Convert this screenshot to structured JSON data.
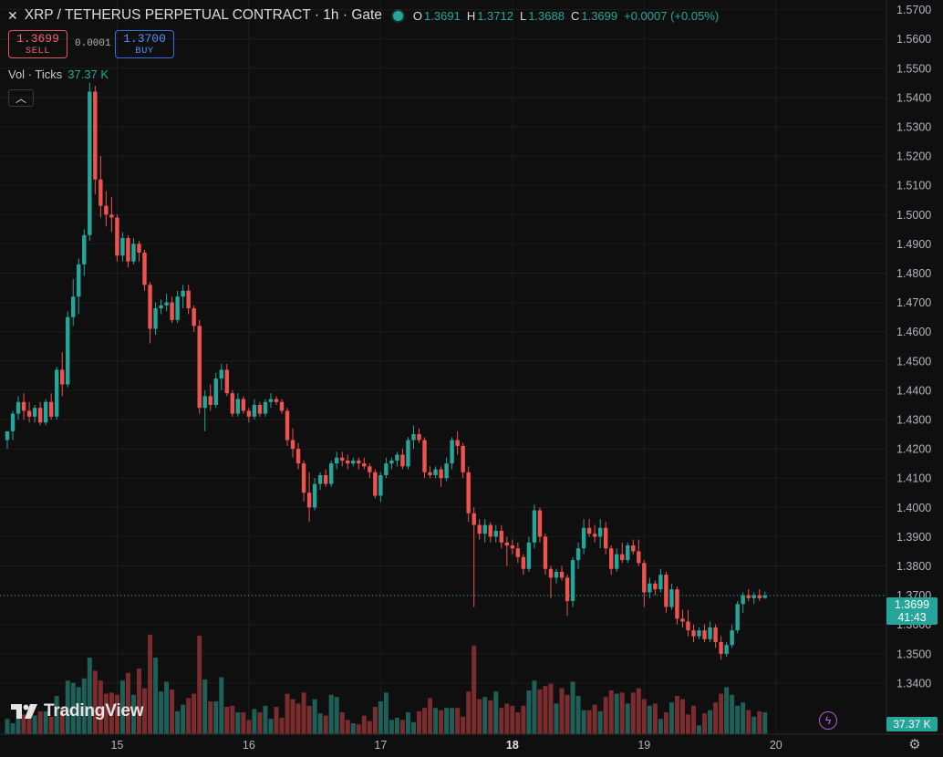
{
  "header": {
    "title": "XRP / TETHERUS PERPETUAL CONTRACT · 1h · Gate",
    "ohlc": [
      {
        "key": "O",
        "value": "1.3691"
      },
      {
        "key": "H",
        "value": "1.3712"
      },
      {
        "key": "L",
        "value": "1.3688"
      },
      {
        "key": "C",
        "value": "1.3699"
      }
    ],
    "change": "+0.0007 (+0.05%)"
  },
  "trade": {
    "sell_price": "1.3699",
    "sell_label": "SELL",
    "spread": "0.0001",
    "buy_price": "1.3700",
    "buy_label": "BUY"
  },
  "volume_legend": {
    "label": "Vol · Ticks",
    "value": "37.37 K"
  },
  "collapse_icon": "chevron-up-icon",
  "logo": {
    "wordmark": "TradingView",
    "icon": "tradingview-logo-icon"
  },
  "price_tag": {
    "price": "1.3699",
    "countdown": "41:43"
  },
  "volume_tag": "37.37 K",
  "colors": {
    "up": "#26a69a",
    "down": "#ef5350",
    "background": "#0f0f0f",
    "grid": "#1d1d1d"
  },
  "chart_data": {
    "type": "candlestick",
    "title": "XRP / TETHERUS PERPETUAL CONTRACT · 1h · Gate",
    "interval": "1h",
    "y_ticks": [
      "1.5700",
      "1.5600",
      "1.5500",
      "1.5400",
      "1.5300",
      "1.5200",
      "1.5100",
      "1.5000",
      "1.4900",
      "1.4800",
      "1.4700",
      "1.4600",
      "1.4500",
      "1.4400",
      "1.4300",
      "1.4200",
      "1.4100",
      "1.4000",
      "1.3900",
      "1.3800",
      "1.3700",
      "1.3600",
      "1.3500",
      "1.3400"
    ],
    "ylim": [
      1.3325,
      1.5705
    ],
    "x_ticks": [
      {
        "label": "15",
        "index": 20,
        "bold": false
      },
      {
        "label": "16",
        "index": 44,
        "bold": false
      },
      {
        "label": "17",
        "index": 68,
        "bold": false
      },
      {
        "label": "18",
        "index": 92,
        "bold": true
      },
      {
        "label": "19",
        "index": 116,
        "bold": false
      },
      {
        "label": "20",
        "index": 140,
        "bold": false
      }
    ],
    "candles": [
      [
        1.423,
        1.426,
        1.42,
        1.426
      ],
      [
        1.426,
        1.433,
        1.423,
        1.432
      ],
      [
        1.432,
        1.438,
        1.43,
        1.436
      ],
      [
        1.436,
        1.439,
        1.43,
        1.433
      ],
      [
        1.433,
        1.436,
        1.429,
        1.431
      ],
      [
        1.431,
        1.435,
        1.429,
        1.434
      ],
      [
        1.434,
        1.436,
        1.428,
        1.429
      ],
      [
        1.429,
        1.437,
        1.428,
        1.436
      ],
      [
        1.436,
        1.439,
        1.43,
        1.431
      ],
      [
        1.431,
        1.448,
        1.43,
        1.447
      ],
      [
        1.447,
        1.453,
        1.438,
        1.442
      ],
      [
        1.442,
        1.467,
        1.441,
        1.465
      ],
      [
        1.465,
        1.478,
        1.462,
        1.472
      ],
      [
        1.472,
        1.485,
        1.466,
        1.483
      ],
      [
        1.483,
        1.495,
        1.479,
        1.493
      ],
      [
        1.493,
        1.545,
        1.491,
        1.542
      ],
      [
        1.542,
        1.544,
        1.507,
        1.512
      ],
      [
        1.512,
        1.52,
        1.499,
        1.503
      ],
      [
        1.503,
        1.508,
        1.496,
        1.5
      ],
      [
        1.5,
        1.506,
        1.494,
        1.499
      ],
      [
        1.499,
        1.5,
        1.484,
        1.486
      ],
      [
        1.486,
        1.494,
        1.484,
        1.492
      ],
      [
        1.492,
        1.493,
        1.482,
        1.484
      ],
      [
        1.484,
        1.492,
        1.483,
        1.49
      ],
      [
        1.49,
        1.491,
        1.484,
        1.487
      ],
      [
        1.487,
        1.488,
        1.474,
        1.476
      ],
      [
        1.476,
        1.477,
        1.456,
        1.461
      ],
      [
        1.461,
        1.47,
        1.459,
        1.468
      ],
      [
        1.468,
        1.471,
        1.466,
        1.469
      ],
      [
        1.469,
        1.473,
        1.467,
        1.47
      ],
      [
        1.47,
        1.472,
        1.463,
        1.464
      ],
      [
        1.464,
        1.474,
        1.463,
        1.472
      ],
      [
        1.472,
        1.476,
        1.468,
        1.474
      ],
      [
        1.474,
        1.476,
        1.466,
        1.468
      ],
      [
        1.468,
        1.469,
        1.46,
        1.462
      ],
      [
        1.462,
        1.464,
        1.432,
        1.434
      ],
      [
        1.434,
        1.44,
        1.426,
        1.438
      ],
      [
        1.438,
        1.442,
        1.433,
        1.435
      ],
      [
        1.435,
        1.446,
        1.434,
        1.444
      ],
      [
        1.444,
        1.449,
        1.44,
        1.447
      ],
      [
        1.447,
        1.449,
        1.438,
        1.439
      ],
      [
        1.439,
        1.44,
        1.431,
        1.432
      ],
      [
        1.432,
        1.439,
        1.431,
        1.437
      ],
      [
        1.437,
        1.438,
        1.432,
        1.433
      ],
      [
        1.433,
        1.434,
        1.429,
        1.431
      ],
      [
        1.431,
        1.437,
        1.43,
        1.435
      ],
      [
        1.435,
        1.436,
        1.431,
        1.432
      ],
      [
        1.432,
        1.437,
        1.431,
        1.436
      ],
      [
        1.436,
        1.439,
        1.434,
        1.437
      ],
      [
        1.437,
        1.438,
        1.435,
        1.436
      ],
      [
        1.436,
        1.437,
        1.432,
        1.433
      ],
      [
        1.433,
        1.434,
        1.421,
        1.423
      ],
      [
        1.423,
        1.427,
        1.417,
        1.42
      ],
      [
        1.42,
        1.422,
        1.413,
        1.415
      ],
      [
        1.415,
        1.416,
        1.402,
        1.405
      ],
      [
        1.405,
        1.412,
        1.395,
        1.4
      ],
      [
        1.4,
        1.41,
        1.399,
        1.408
      ],
      [
        1.408,
        1.412,
        1.406,
        1.411
      ],
      [
        1.411,
        1.413,
        1.407,
        1.408
      ],
      [
        1.408,
        1.416,
        1.407,
        1.415
      ],
      [
        1.415,
        1.419,
        1.413,
        1.417
      ],
      [
        1.417,
        1.419,
        1.414,
        1.416
      ],
      [
        1.416,
        1.418,
        1.413,
        1.415
      ],
      [
        1.415,
        1.417,
        1.414,
        1.416
      ],
      [
        1.416,
        1.417,
        1.413,
        1.415
      ],
      [
        1.415,
        1.417,
        1.413,
        1.414
      ],
      [
        1.414,
        1.415,
        1.41,
        1.412
      ],
      [
        1.412,
        1.413,
        1.403,
        1.404
      ],
      [
        1.404,
        1.412,
        1.402,
        1.411
      ],
      [
        1.411,
        1.417,
        1.41,
        1.415
      ],
      [
        1.415,
        1.417,
        1.413,
        1.416
      ],
      [
        1.416,
        1.419,
        1.414,
        1.418
      ],
      [
        1.418,
        1.42,
        1.413,
        1.414
      ],
      [
        1.414,
        1.424,
        1.413,
        1.423
      ],
      [
        1.423,
        1.428,
        1.42,
        1.425
      ],
      [
        1.425,
        1.427,
        1.422,
        1.423
      ],
      [
        1.423,
        1.424,
        1.41,
        1.412
      ],
      [
        1.412,
        1.414,
        1.41,
        1.411
      ],
      [
        1.411,
        1.414,
        1.41,
        1.413
      ],
      [
        1.413,
        1.414,
        1.407,
        1.41
      ],
      [
        1.41,
        1.417,
        1.409,
        1.415
      ],
      [
        1.415,
        1.424,
        1.413,
        1.423
      ],
      [
        1.423,
        1.426,
        1.418,
        1.421
      ],
      [
        1.421,
        1.422,
        1.41,
        1.412
      ],
      [
        1.412,
        1.414,
        1.395,
        1.398
      ],
      [
        1.398,
        1.4,
        1.366,
        1.394
      ],
      [
        1.394,
        1.396,
        1.389,
        1.391
      ],
      [
        1.391,
        1.396,
        1.388,
        1.394
      ],
      [
        1.394,
        1.395,
        1.388,
        1.39
      ],
      [
        1.39,
        1.394,
        1.388,
        1.392
      ],
      [
        1.392,
        1.394,
        1.386,
        1.388
      ],
      [
        1.388,
        1.39,
        1.38,
        1.387
      ],
      [
        1.387,
        1.389,
        1.384,
        1.386
      ],
      [
        1.386,
        1.388,
        1.381,
        1.383
      ],
      [
        1.383,
        1.384,
        1.377,
        1.379
      ],
      [
        1.379,
        1.39,
        1.378,
        1.388
      ],
      [
        1.388,
        1.401,
        1.386,
        1.399
      ],
      [
        1.399,
        1.4,
        1.388,
        1.39
      ],
      [
        1.39,
        1.391,
        1.377,
        1.379
      ],
      [
        1.379,
        1.38,
        1.369,
        1.376
      ],
      [
        1.376,
        1.379,
        1.374,
        1.378
      ],
      [
        1.378,
        1.38,
        1.375,
        1.376
      ],
      [
        1.376,
        1.377,
        1.363,
        1.368
      ],
      [
        1.368,
        1.383,
        1.366,
        1.382
      ],
      [
        1.382,
        1.388,
        1.379,
        1.386
      ],
      [
        1.386,
        1.396,
        1.384,
        1.393
      ],
      [
        1.393,
        1.396,
        1.39,
        1.391
      ],
      [
        1.391,
        1.394,
        1.388,
        1.39
      ],
      [
        1.39,
        1.396,
        1.386,
        1.393
      ],
      [
        1.393,
        1.395,
        1.384,
        1.386
      ],
      [
        1.386,
        1.387,
        1.377,
        1.379
      ],
      [
        1.379,
        1.386,
        1.378,
        1.384
      ],
      [
        1.384,
        1.388,
        1.381,
        1.382
      ],
      [
        1.382,
        1.388,
        1.381,
        1.387
      ],
      [
        1.387,
        1.389,
        1.384,
        1.385
      ],
      [
        1.385,
        1.389,
        1.38,
        1.381
      ],
      [
        1.381,
        1.382,
        1.366,
        1.371
      ],
      [
        1.371,
        1.376,
        1.369,
        1.374
      ],
      [
        1.374,
        1.375,
        1.37,
        1.372
      ],
      [
        1.372,
        1.379,
        1.371,
        1.377
      ],
      [
        1.377,
        1.378,
        1.364,
        1.366
      ],
      [
        1.366,
        1.374,
        1.365,
        1.372
      ],
      [
        1.372,
        1.373,
        1.36,
        1.362
      ],
      [
        1.362,
        1.365,
        1.359,
        1.361
      ],
      [
        1.361,
        1.365,
        1.356,
        1.358
      ],
      [
        1.358,
        1.36,
        1.354,
        1.356
      ],
      [
        1.356,
        1.359,
        1.355,
        1.358
      ],
      [
        1.358,
        1.36,
        1.354,
        1.355
      ],
      [
        1.355,
        1.361,
        1.354,
        1.359
      ],
      [
        1.359,
        1.36,
        1.352,
        1.354
      ],
      [
        1.354,
        1.356,
        1.348,
        1.35
      ],
      [
        1.35,
        1.354,
        1.349,
        1.353
      ],
      [
        1.353,
        1.36,
        1.352,
        1.358
      ],
      [
        1.358,
        1.368,
        1.357,
        1.367
      ],
      [
        1.367,
        1.371,
        1.364,
        1.37
      ],
      [
        1.37,
        1.372,
        1.368,
        1.369
      ],
      [
        1.369,
        1.371,
        1.367,
        1.37
      ],
      [
        1.37,
        1.372,
        1.368,
        1.369
      ],
      [
        1.3691,
        1.3712,
        1.3688,
        1.3699
      ]
    ],
    "volumes": [
      14,
      10,
      26,
      18,
      17,
      17,
      21,
      21,
      16,
      35,
      24,
      49,
      47,
      43,
      51,
      70,
      58,
      49,
      37,
      38,
      36,
      49,
      56,
      36,
      60,
      42,
      91,
      70,
      39,
      48,
      41,
      21,
      27,
      33,
      37,
      90,
      50,
      30,
      30,
      52,
      25,
      26,
      20,
      20,
      13,
      23,
      20,
      26,
      14,
      25,
      15,
      37,
      32,
      28,
      38,
      26,
      32,
      19,
      17,
      36,
      34,
      20,
      13,
      10,
      9,
      17,
      12,
      25,
      30,
      38,
      13,
      15,
      13,
      20,
      11,
      21,
      24,
      33,
      24,
      22,
      24,
      24,
      24,
      16,
      39,
      81,
      32,
      34,
      31,
      39,
      24,
      28,
      26,
      20,
      26,
      40,
      49,
      41,
      44,
      46,
      28,
      42,
      36,
      48,
      35,
      22,
      22,
      27,
      21,
      34,
      40,
      37,
      38,
      28,
      38,
      42,
      32,
      26,
      28,
      14,
      20,
      29,
      35,
      32,
      18,
      26,
      8,
      19,
      22,
      29,
      37,
      43,
      36,
      26,
      29,
      22,
      16,
      21,
      20
    ],
    "volume_max": 37370,
    "last_price": 1.3699
  }
}
